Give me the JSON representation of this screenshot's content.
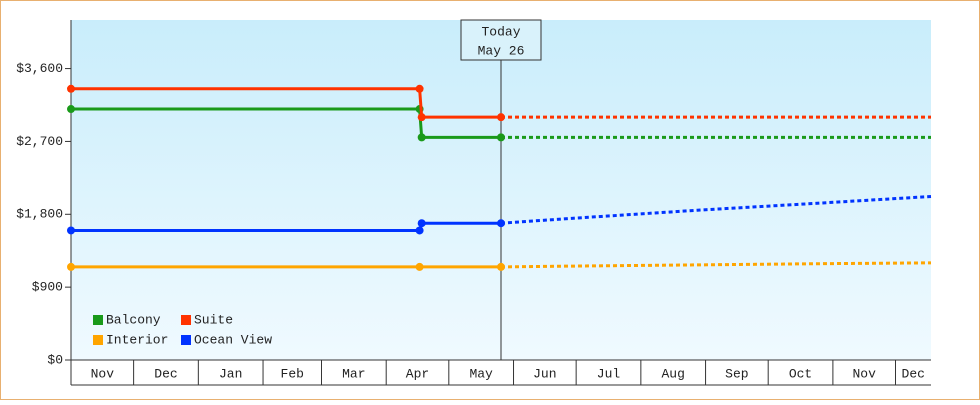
{
  "chart_data": {
    "type": "line",
    "xlim": [
      0,
      412
    ],
    "ylim": [
      0,
      4200
    ],
    "xticks": [
      {
        "value": 0,
        "label": "Nov"
      },
      {
        "value": 30,
        "label": "Dec"
      },
      {
        "value": 61,
        "label": "Jan"
      },
      {
        "value": 92,
        "label": "Feb"
      },
      {
        "value": 120,
        "label": "Mar"
      },
      {
        "value": 151,
        "label": "Apr"
      },
      {
        "value": 181,
        "label": "May"
      },
      {
        "value": 212,
        "label": "Jun"
      },
      {
        "value": 242,
        "label": "Jul"
      },
      {
        "value": 273,
        "label": "Aug"
      },
      {
        "value": 304,
        "label": "Sep"
      },
      {
        "value": 334,
        "label": "Oct"
      },
      {
        "value": 365,
        "label": "Nov"
      },
      {
        "value": 395,
        "label": "Dec"
      }
    ],
    "yticks": [
      {
        "value": 0,
        "label": "$0"
      },
      {
        "value": 900,
        "label": "$900"
      },
      {
        "value": 1800,
        "label": "$1,800"
      },
      {
        "value": 2700,
        "label": "$2,700"
      },
      {
        "value": 3600,
        "label": "$3,600"
      }
    ],
    "annotation": {
      "x": 206,
      "lines": [
        "Today",
        "May 26"
      ]
    },
    "series": [
      {
        "name": "Balcony",
        "color": "#1a9a1a",
        "x": [
          0,
          167,
          168,
          206
        ],
        "values": [
          3100,
          3100,
          2750,
          2750
        ],
        "forecast": {
          "x": [
            206,
            412
          ],
          "values": [
            2750,
            2750
          ]
        }
      },
      {
        "name": "Suite",
        "color": "#ff3300",
        "x": [
          0,
          167,
          168,
          206
        ],
        "values": [
          3350,
          3350,
          3000,
          3000
        ],
        "forecast": {
          "x": [
            206,
            412
          ],
          "values": [
            3000,
            3000
          ]
        }
      },
      {
        "name": "Interior",
        "color": "#ffa500",
        "x": [
          0,
          167,
          206
        ],
        "values": [
          1150,
          1150,
          1150
        ],
        "forecast": {
          "x": [
            206,
            240,
            300,
            360,
            412
          ],
          "values": [
            1150,
            1160,
            1175,
            1190,
            1200
          ]
        }
      },
      {
        "name": "Ocean View",
        "color": "#0033ff",
        "x": [
          0,
          167,
          168,
          206
        ],
        "values": [
          1600,
          1600,
          1690,
          1690
        ],
        "forecast": {
          "x": [
            206,
            240,
            300,
            360,
            412
          ],
          "values": [
            1690,
            1750,
            1850,
            1940,
            2020
          ]
        }
      }
    ]
  }
}
